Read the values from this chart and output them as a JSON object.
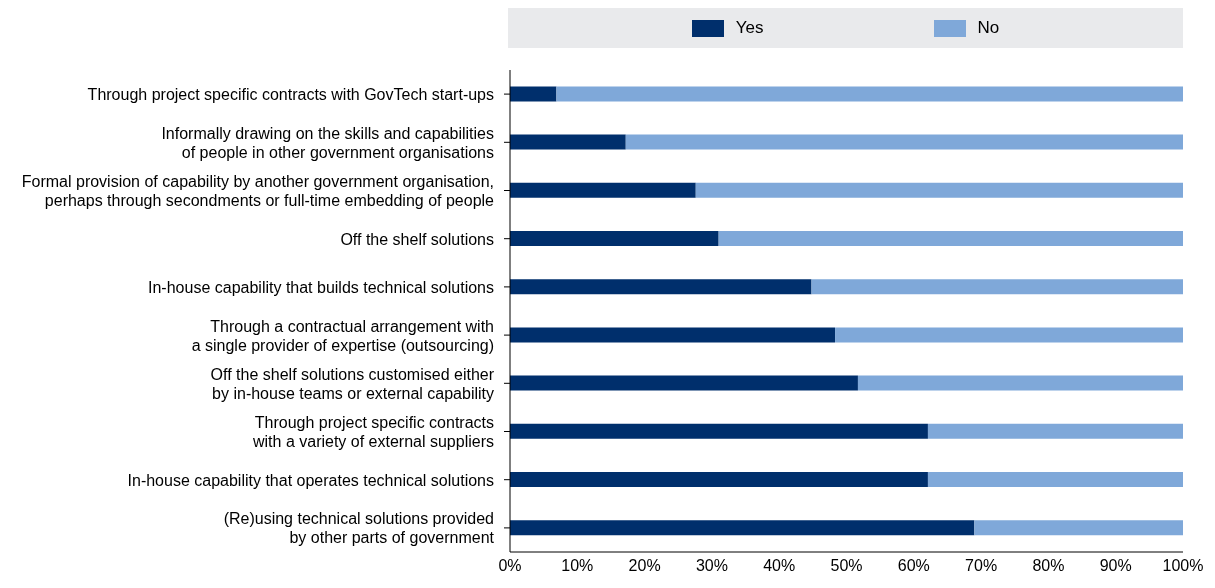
{
  "chart_data": {
    "type": "bar",
    "orientation": "horizontal",
    "stacked": true,
    "legend": "top",
    "grid": false,
    "categories": [
      "Through project specific contracts with GovTech start-ups",
      "Informally drawing on the skills and capabilities\nof people in other government organisations",
      "Formal provision of capability by another government organisation,\nperhaps through secondments or full-time embedding of people",
      "Off the shelf solutions",
      "In-house capability that builds technical solutions",
      "Through a contractual arrangement with\na single provider of expertise (outsourcing)",
      "Off the shelf solutions customised either\nby in-house teams or external capability",
      "Through project specific contracts\nwith a variety of external suppliers",
      "In-house capability that operates technical solutions",
      "(Re)using technical solutions provided\nby other parts of government"
    ],
    "series": [
      {
        "name": "Yes",
        "color": "#002f6c",
        "values": [
          6.9,
          17.2,
          27.6,
          31.0,
          44.8,
          48.3,
          51.7,
          62.1,
          62.1,
          69.0
        ]
      },
      {
        "name": "No",
        "color": "#7fa8d9",
        "values": [
          93.1,
          82.8,
          72.4,
          69.0,
          55.2,
          51.7,
          48.3,
          37.9,
          37.9,
          31.0
        ]
      }
    ],
    "xlim": [
      0,
      100
    ],
    "xticks": [
      {
        "value": 0,
        "label": "0%"
      },
      {
        "value": 10,
        "label": "10%"
      },
      {
        "value": 20,
        "label": "20%"
      },
      {
        "value": 30,
        "label": "30%"
      },
      {
        "value": 40,
        "label": "40%"
      },
      {
        "value": 50,
        "label": "50%"
      },
      {
        "value": 60,
        "label": "60%"
      },
      {
        "value": 70,
        "label": "70%"
      },
      {
        "value": 80,
        "label": "80%"
      },
      {
        "value": 90,
        "label": "90%"
      },
      {
        "value": 100,
        "label": "100%"
      }
    ]
  }
}
